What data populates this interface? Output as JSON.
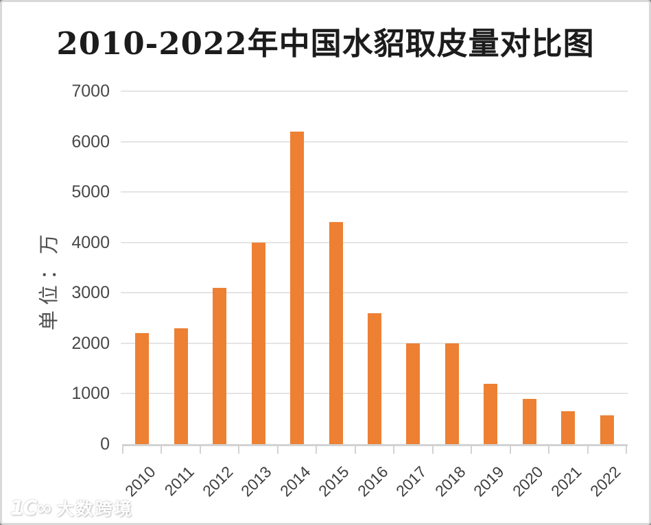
{
  "chart_data": {
    "type": "bar",
    "title": "2010-2022年中国水貂取皮量对比图",
    "ylabel": "单位：万",
    "xlabel": "",
    "categories": [
      "2010",
      "2011",
      "2012",
      "2013",
      "2014",
      "2015",
      "2016",
      "2017",
      "2018",
      "2019",
      "2020",
      "2021",
      "2022"
    ],
    "values": [
      2200,
      2300,
      3100,
      4000,
      6200,
      4400,
      2600,
      2000,
      2000,
      1200,
      900,
      650,
      570
    ],
    "ylim": [
      0,
      7000
    ],
    "ytick_interval": 1000,
    "yticks": [
      "0",
      "1000",
      "2000",
      "3000",
      "4000",
      "5000",
      "6000",
      "7000"
    ],
    "grid": true,
    "legend_position": "none",
    "bar_color": "#ED8033",
    "xtick_rotation": 45
  },
  "watermark": {
    "logo": "1C∞",
    "text": "大数跨境"
  }
}
